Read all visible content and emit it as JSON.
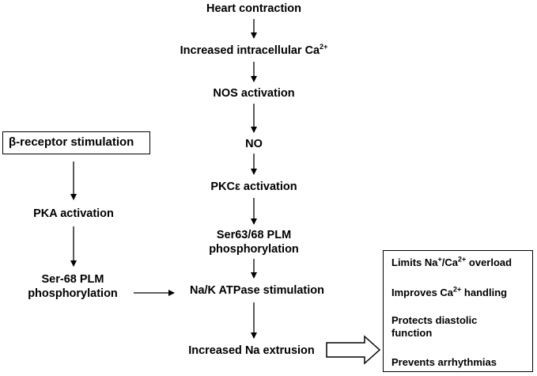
{
  "main_chain": {
    "heart_contraction": "Heart contraction",
    "increased_ca_prefix": "Increased intracellular Ca",
    "increased_ca_sup": "2+",
    "nos_activation": "NOS activation",
    "no": "NO",
    "pkc_activation": "PKCε activation",
    "plm_phos_line1": "Ser63/68 PLM",
    "plm_phos_line2": "phosphorylation",
    "nak_atpase": "Na/K ATPase stimulation",
    "na_extrusion": "Increased Na extrusion"
  },
  "beta_branch": {
    "receptor": "β-receptor stimulation",
    "pka_activation": "PKA activation",
    "ser68_line1": "Ser-68 PLM",
    "ser68_line2": "phosphorylation"
  },
  "effects": {
    "limits_prefix": "Limits Na",
    "limits_sup1": "+",
    "limits_mid": "/Ca",
    "limits_sup2": "2+",
    "limits_suffix": " overload",
    "improves_prefix": "Improves Ca",
    "improves_sup": "2+",
    "improves_suffix": " handling",
    "protects_line1": "Protects diastolic",
    "protects_line2": "function",
    "prevents": "Prevents arrhythmias"
  }
}
